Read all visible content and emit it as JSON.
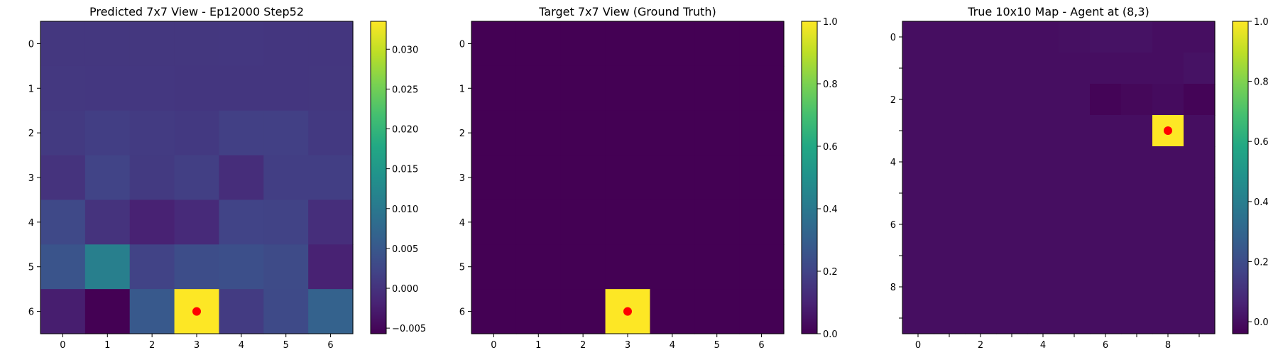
{
  "colormap": "viridis",
  "marker_color": "#ff0000",
  "chart_data": [
    {
      "type": "heatmap",
      "title": "Predicted 7x7 View - Ep12000 Step52",
      "xlabel": "",
      "ylabel": "",
      "xticks": [
        "0",
        "1",
        "2",
        "3",
        "4",
        "5",
        "6"
      ],
      "yticks": [
        "0",
        "1",
        "2",
        "3",
        "4",
        "5",
        "6"
      ],
      "vmin": -0.0057,
      "vmax": 0.0335,
      "colorbar_ticks": [
        "0.030",
        "0.025",
        "0.020",
        "0.015",
        "0.010",
        "0.005",
        "0.000",
        "−0.005"
      ],
      "colorbar_values": [
        0.03,
        0.025,
        0.02,
        0.015,
        0.01,
        0.005,
        0.0,
        -0.005
      ],
      "values": [
        [
          0.0005,
          0.0005,
          0.0005,
          0.0005,
          0.0006,
          0.0004,
          0.0004
        ],
        [
          0.0007,
          0.0006,
          0.0006,
          0.0004,
          0.0004,
          0.0004,
          0.0005
        ],
        [
          0.0009,
          0.0014,
          0.001,
          0.0008,
          0.0017,
          0.0016,
          0.0008
        ],
        [
          0.0,
          0.0022,
          0.0009,
          0.0015,
          -0.0007,
          0.0014,
          0.0014
        ],
        [
          0.0028,
          0.0,
          -0.002,
          -0.001,
          0.0021,
          0.002,
          -0.0005
        ],
        [
          0.0045,
          0.011,
          0.002,
          0.0035,
          0.0038,
          0.0031,
          -0.002
        ],
        [
          -0.0025,
          -0.0057,
          0.0052,
          0.0335,
          0.001,
          0.003,
          0.0065
        ]
      ],
      "marker": {
        "x": 3,
        "y": 6
      }
    },
    {
      "type": "heatmap",
      "title": "Target 7x7 View (Ground Truth)",
      "xlabel": "",
      "ylabel": "",
      "xticks": [
        "0",
        "1",
        "2",
        "3",
        "4",
        "5",
        "6"
      ],
      "yticks": [
        "0",
        "1",
        "2",
        "3",
        "4",
        "5",
        "6"
      ],
      "vmin": 0.0,
      "vmax": 1.0,
      "colorbar_ticks": [
        "1.0",
        "0.8",
        "0.6",
        "0.4",
        "0.2",
        "0.0"
      ],
      "colorbar_values": [
        1.0,
        0.8,
        0.6,
        0.4,
        0.2,
        0.0
      ],
      "values": [
        [
          0,
          0,
          0,
          0,
          0,
          0,
          0
        ],
        [
          0,
          0,
          0,
          0,
          0,
          0,
          0
        ],
        [
          0,
          0,
          0,
          0,
          0,
          0,
          0
        ],
        [
          0,
          0,
          0,
          0,
          0,
          0,
          0
        ],
        [
          0,
          0,
          0,
          0,
          0,
          0,
          0
        ],
        [
          0,
          0,
          0,
          0,
          0,
          0,
          0
        ],
        [
          0,
          0,
          0,
          1,
          0,
          0,
          0
        ]
      ],
      "marker": {
        "x": 3,
        "y": 6
      }
    },
    {
      "type": "heatmap",
      "title": "True 10x10 Map - Agent at (8,3)",
      "xlabel": "",
      "ylabel": "",
      "xticks": [
        "0",
        "",
        "2",
        "",
        "4",
        "",
        "6",
        "",
        "8",
        ""
      ],
      "yticks": [
        "0",
        "",
        "2",
        "",
        "4",
        "",
        "6",
        "",
        "8",
        ""
      ],
      "vmin": -0.04,
      "vmax": 1.0,
      "colorbar_ticks": [
        "1.0",
        "0.8",
        "0.6",
        "0.4",
        "0.2",
        "0.0"
      ],
      "colorbar_values": [
        1.0,
        0.8,
        0.6,
        0.4,
        0.2,
        0.0
      ],
      "values": [
        [
          0,
          0,
          0,
          0,
          0,
          0.005,
          0.01,
          0.01,
          0.0,
          0.0
        ],
        [
          0,
          0,
          0,
          0,
          0,
          0,
          0,
          0,
          0,
          0.01
        ],
        [
          0,
          0,
          0,
          0,
          0,
          0,
          -0.03,
          -0.02,
          -0.01,
          -0.03
        ],
        [
          0,
          0,
          0,
          0,
          0,
          0,
          0,
          0,
          1,
          0
        ],
        [
          0,
          0,
          0,
          0,
          0,
          0,
          0,
          0,
          0,
          0
        ],
        [
          0,
          0,
          0,
          0,
          0,
          0,
          0,
          0,
          0,
          0
        ],
        [
          0,
          0,
          0,
          0,
          0,
          0,
          0,
          0,
          0,
          0
        ],
        [
          0,
          0,
          0,
          0,
          0,
          0,
          0,
          0,
          0,
          0
        ],
        [
          0,
          0,
          0,
          0,
          0,
          0,
          0,
          0,
          0,
          0
        ],
        [
          0,
          0,
          0,
          0,
          0,
          0,
          0,
          0,
          0,
          0
        ]
      ],
      "marker": {
        "x": 8,
        "y": 3
      }
    }
  ]
}
